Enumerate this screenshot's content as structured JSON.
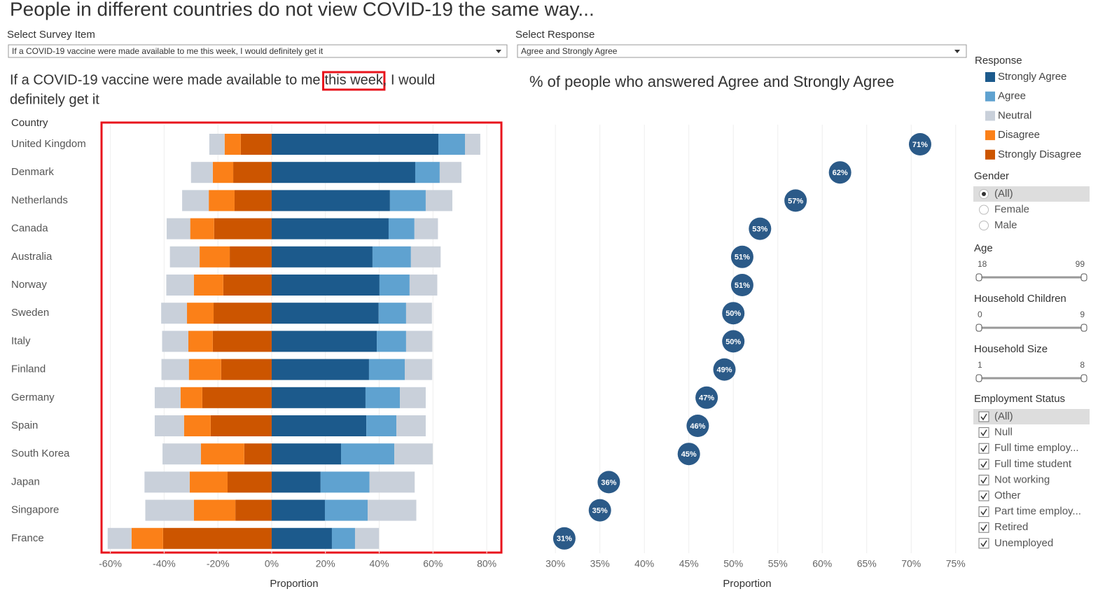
{
  "header": {
    "title": "People in different countries do not view COVID-19 the same way..."
  },
  "filters": {
    "survey_item": {
      "label": "Select Survey Item",
      "value": "If a COVID-19 vaccine were made available to me this week, I would definitely get it"
    },
    "response": {
      "label": "Select Response",
      "value": "Agree and Strongly Agree"
    }
  },
  "chart_data": [
    {
      "type": "diverging_bar",
      "title_parts": [
        "If a COVID-19 vaccine were made available to me",
        "this week",
        ", I would",
        "definitely get it"
      ],
      "y_label": "Country",
      "x_label": "Proportion",
      "categories": [
        "United Kingdom",
        "Denmark",
        "Netherlands",
        "Canada",
        "Australia",
        "Norway",
        "Sweden",
        "Italy",
        "Finland",
        "Germany",
        "Spain",
        "South Korea",
        "Japan",
        "Singapore",
        "France"
      ],
      "series": [
        {
          "name": "Strongly Agree",
          "color": "#1c5a8c",
          "values": [
            62.0,
            53.4,
            44.0,
            43.5,
            37.5,
            40.1,
            39.8,
            39.1,
            36.2,
            34.9,
            35.2,
            25.8,
            18.2,
            19.8,
            22.4
          ]
        },
        {
          "name": "Agree",
          "color": "#5fa2d0",
          "values": [
            9.9,
            9.1,
            13.3,
            9.6,
            14.3,
            11.2,
            10.2,
            10.9,
            13.3,
            12.8,
            11.2,
            19.8,
            18.2,
            15.9,
            8.6
          ]
        },
        {
          "name": "Neutral",
          "color": "#c9d0da",
          "values": [
            11.4,
            16.2,
            19.8,
            17.5,
            22.1,
            20.6,
            19.2,
            19.5,
            20.4,
            19.2,
            21.8,
            28.6,
            33.6,
            36.2,
            17.8
          ]
        },
        {
          "name": "Disagree",
          "color": "#fb8018",
          "values": [
            6.0,
            7.6,
            9.6,
            8.9,
            11.2,
            10.9,
            9.9,
            9.1,
            12.0,
            8.1,
            9.9,
            16.1,
            14.1,
            15.4,
            11.7
          ]
        },
        {
          "name": "Strongly Disagree",
          "color": "#cc5500",
          "values": [
            11.5,
            14.3,
            13.8,
            21.4,
            15.6,
            18.0,
            21.6,
            21.9,
            18.8,
            25.8,
            22.7,
            10.2,
            16.4,
            13.5,
            40.4
          ]
        }
      ],
      "xlim": [
        -62.5,
        84.4
      ],
      "xticks": [
        {
          "value": -60,
          "label": "-60%"
        },
        {
          "value": -40,
          "label": "-40%"
        },
        {
          "value": -20,
          "label": "-20%"
        },
        {
          "value": 0,
          "label": "0%"
        },
        {
          "value": 20,
          "label": "20%"
        },
        {
          "value": 40,
          "label": "40%"
        },
        {
          "value": 60,
          "label": "60%"
        },
        {
          "value": 80,
          "label": "80%"
        }
      ],
      "grid": true
    },
    {
      "type": "dot",
      "title": "% of people who answered Agree and Strongly Agree",
      "x_label": "Proportion",
      "values": [
        71,
        62,
        57,
        53,
        51,
        51,
        50,
        50,
        49,
        47,
        46,
        45,
        36,
        35,
        31
      ],
      "value_labels": [
        "71%",
        "62%",
        "57%",
        "53%",
        "51%",
        "51%",
        "50%",
        "50%",
        "49%",
        "47%",
        "46%",
        "45%",
        "36%",
        "35%",
        "31%"
      ],
      "color": "#2b5a88",
      "xlim": [
        26.6,
        76.2
      ],
      "xticks": [
        {
          "value": 30,
          "label": "30%"
        },
        {
          "value": 35,
          "label": "35%"
        },
        {
          "value": 40,
          "label": "40%"
        },
        {
          "value": 45,
          "label": "45%"
        },
        {
          "value": 50,
          "label": "50%"
        },
        {
          "value": 55,
          "label": "55%"
        },
        {
          "value": 60,
          "label": "60%"
        },
        {
          "value": 65,
          "label": "65%"
        },
        {
          "value": 70,
          "label": "70%"
        },
        {
          "value": 75,
          "label": "75%"
        }
      ],
      "grid": true
    }
  ],
  "sidebar": {
    "legend_title": "Response",
    "gender": {
      "title": "Gender",
      "options": [
        "(All)",
        "Female",
        "Male"
      ]
    },
    "age": {
      "title": "Age",
      "min": 18,
      "max": 99
    },
    "household_children": {
      "title": "Household Children",
      "min": 0,
      "max": 9
    },
    "household_size": {
      "title": "Household Size",
      "min": 1,
      "max": 8
    },
    "employment": {
      "title": "Employment Status",
      "options": [
        "(All)",
        "Null",
        "Full time employ...",
        "Full time student",
        "Not working",
        "Other",
        "Part time employ...",
        "Retired",
        "Unemployed"
      ]
    }
  }
}
